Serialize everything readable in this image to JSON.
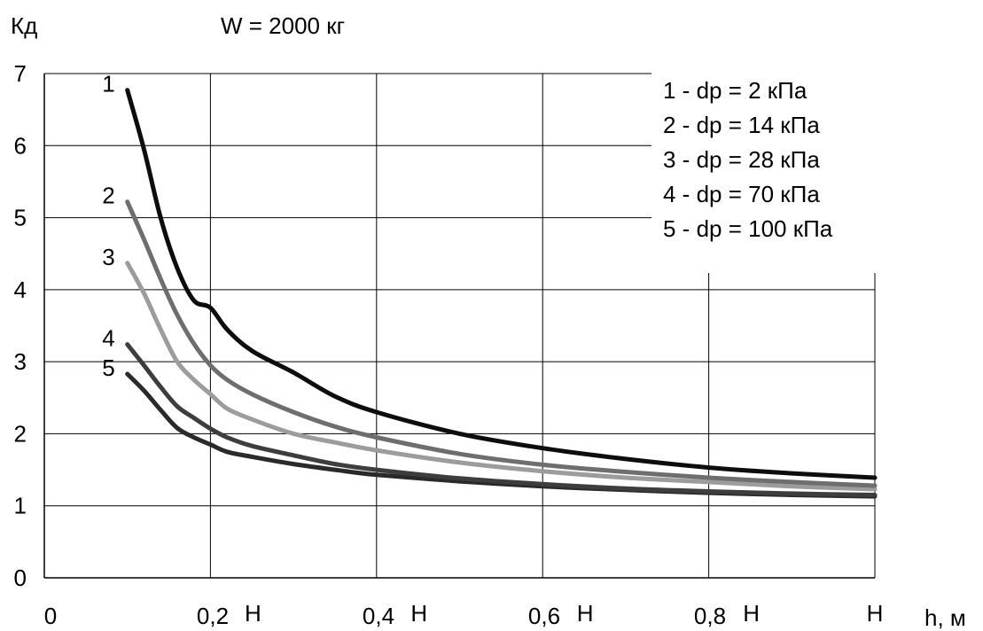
{
  "chart_data": {
    "type": "line",
    "ylabel": "Кд",
    "title": "W = 2000 кг",
    "xlabel": "h, м",
    "x_ticks": [
      {
        "value": 0,
        "label": "0"
      },
      {
        "value": 0.2,
        "label": "0,2"
      },
      {
        "value": 0.4,
        "label": "0,4"
      },
      {
        "value": 0.6,
        "label": "0,6"
      },
      {
        "value": 0.8,
        "label": "0,8"
      }
    ],
    "x_marks": [
      {
        "value": 0.2,
        "label": "Н"
      },
      {
        "value": 0.4,
        "label": "Н"
      },
      {
        "value": 0.6,
        "label": "Н"
      },
      {
        "value": 0.8,
        "label": "Н"
      },
      {
        "value": 1.0,
        "label": "Н"
      }
    ],
    "y_ticks": [
      "0",
      "1",
      "2",
      "3",
      "4",
      "5",
      "6",
      "7"
    ],
    "xlim": [
      0,
      1.0
    ],
    "ylim": [
      0,
      7
    ],
    "grid": true,
    "legend": [
      "1 - dp = 2 кПа",
      "2 - dp = 14 кПа",
      "3 - dp = 28 кПа",
      "4 - dp = 70 кПа",
      "5 - dp = 100 кПа"
    ],
    "legend_position": "top-right",
    "series": [
      {
        "name": "1",
        "color": "#0d0d0d",
        "points": [
          [
            0.1,
            6.77
          ],
          [
            0.12,
            5.95
          ],
          [
            0.14,
            5.0
          ],
          [
            0.16,
            4.3
          ],
          [
            0.18,
            3.85
          ],
          [
            0.2,
            3.75
          ],
          [
            0.22,
            3.45
          ],
          [
            0.25,
            3.15
          ],
          [
            0.3,
            2.85
          ],
          [
            0.35,
            2.52
          ],
          [
            0.4,
            2.3
          ],
          [
            0.5,
            2.0
          ],
          [
            0.6,
            1.8
          ],
          [
            0.7,
            1.65
          ],
          [
            0.8,
            1.53
          ],
          [
            0.9,
            1.45
          ],
          [
            1.0,
            1.39
          ]
        ]
      },
      {
        "name": "2",
        "color": "#6e6e6e",
        "points": [
          [
            0.1,
            5.22
          ],
          [
            0.12,
            4.7
          ],
          [
            0.14,
            4.15
          ],
          [
            0.16,
            3.65
          ],
          [
            0.18,
            3.25
          ],
          [
            0.2,
            2.95
          ],
          [
            0.22,
            2.75
          ],
          [
            0.25,
            2.55
          ],
          [
            0.3,
            2.3
          ],
          [
            0.35,
            2.1
          ],
          [
            0.4,
            1.95
          ],
          [
            0.5,
            1.72
          ],
          [
            0.6,
            1.57
          ],
          [
            0.7,
            1.47
          ],
          [
            0.8,
            1.39
          ],
          [
            0.9,
            1.33
          ],
          [
            1.0,
            1.28
          ]
        ]
      },
      {
        "name": "3",
        "color": "#9c9c9c",
        "points": [
          [
            0.1,
            4.37
          ],
          [
            0.12,
            3.95
          ],
          [
            0.14,
            3.45
          ],
          [
            0.16,
            3.0
          ],
          [
            0.18,
            2.75
          ],
          [
            0.2,
            2.55
          ],
          [
            0.22,
            2.35
          ],
          [
            0.25,
            2.2
          ],
          [
            0.3,
            2.0
          ],
          [
            0.35,
            1.88
          ],
          [
            0.4,
            1.77
          ],
          [
            0.5,
            1.6
          ],
          [
            0.6,
            1.48
          ],
          [
            0.7,
            1.39
          ],
          [
            0.8,
            1.33
          ],
          [
            0.9,
            1.27
          ],
          [
            1.0,
            1.23
          ]
        ]
      },
      {
        "name": "4",
        "color": "#3d3d3d",
        "points": [
          [
            0.1,
            3.24
          ],
          [
            0.12,
            2.95
          ],
          [
            0.14,
            2.65
          ],
          [
            0.16,
            2.38
          ],
          [
            0.18,
            2.22
          ],
          [
            0.2,
            2.07
          ],
          [
            0.22,
            1.95
          ],
          [
            0.25,
            1.83
          ],
          [
            0.3,
            1.7
          ],
          [
            0.35,
            1.58
          ],
          [
            0.4,
            1.5
          ],
          [
            0.5,
            1.38
          ],
          [
            0.6,
            1.3
          ],
          [
            0.7,
            1.24
          ],
          [
            0.8,
            1.2
          ],
          [
            0.9,
            1.17
          ],
          [
            1.0,
            1.15
          ]
        ]
      },
      {
        "name": "5",
        "color": "#2a2a2a",
        "points": [
          [
            0.1,
            2.83
          ],
          [
            0.12,
            2.6
          ],
          [
            0.14,
            2.33
          ],
          [
            0.16,
            2.08
          ],
          [
            0.18,
            1.95
          ],
          [
            0.2,
            1.85
          ],
          [
            0.22,
            1.75
          ],
          [
            0.25,
            1.68
          ],
          [
            0.3,
            1.58
          ],
          [
            0.35,
            1.5
          ],
          [
            0.4,
            1.43
          ],
          [
            0.5,
            1.34
          ],
          [
            0.6,
            1.27
          ],
          [
            0.7,
            1.22
          ],
          [
            0.8,
            1.18
          ],
          [
            0.9,
            1.15
          ],
          [
            1.0,
            1.13
          ]
        ]
      }
    ]
  }
}
